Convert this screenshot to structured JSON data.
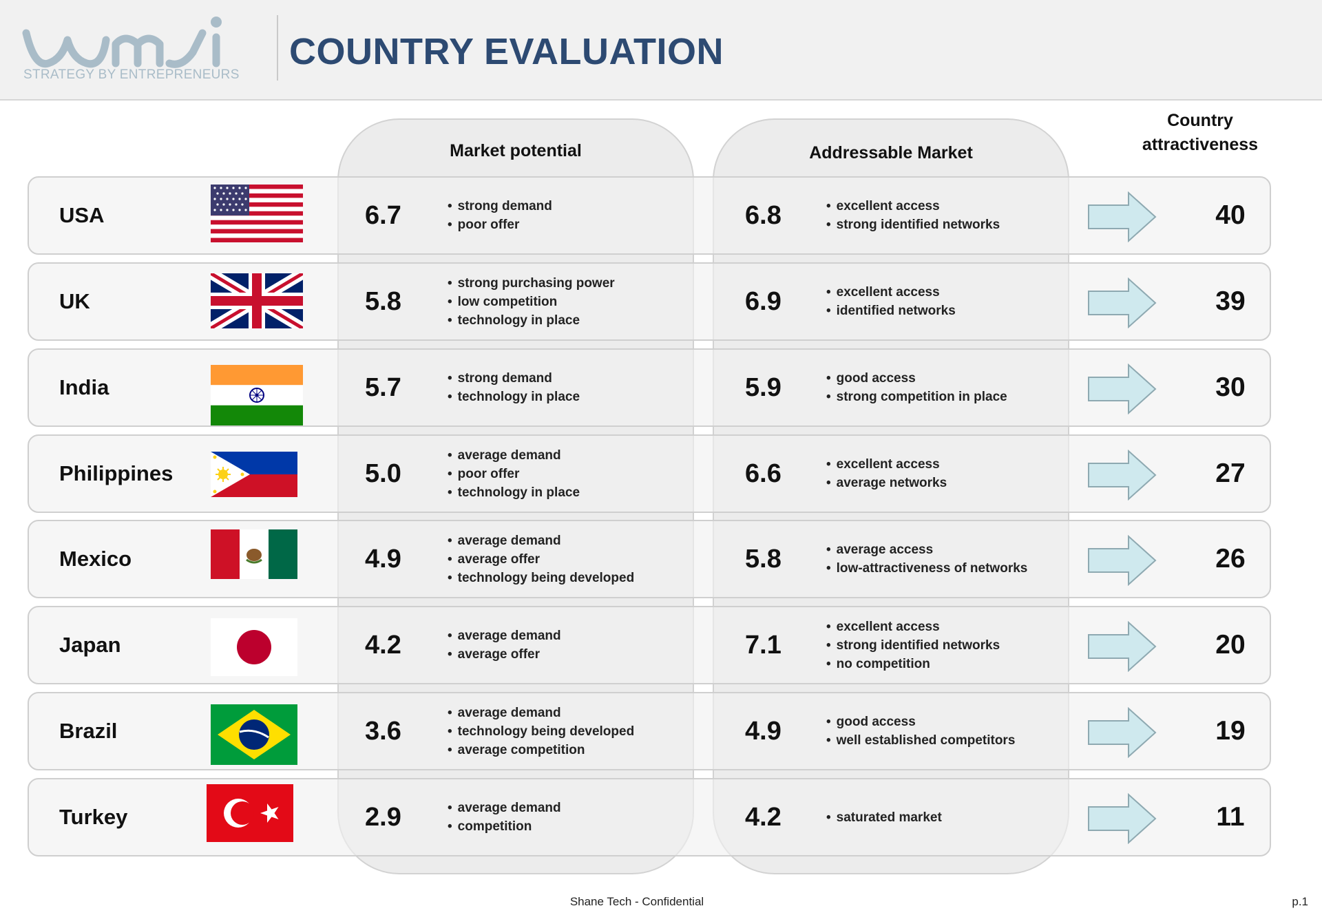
{
  "header": {
    "logo_text": "wmi",
    "logo_tagline": "STRATEGY BY ENTREPRENEURS",
    "title": "COUNTRY EVALUATION"
  },
  "columns": {
    "market_potential": "Market potential",
    "addressable_market": "Addressable Market",
    "attractiveness_line1": "Country",
    "attractiveness_line2": "attractiveness"
  },
  "colors": {
    "title": "#2d4a72",
    "logo": "#a9bcc8",
    "arrow_fill": "#cfe9ee",
    "arrow_stroke": "#8ea9b1"
  },
  "rows": [
    {
      "country": "USA",
      "flag": "usa-flag",
      "market_score": "6.7",
      "market_notes": [
        "strong demand",
        "poor offer"
      ],
      "address_score": "6.8",
      "address_notes": [
        "excellent access",
        "strong identified networks"
      ],
      "attractiveness": "40"
    },
    {
      "country": "UK",
      "flag": "uk-flag",
      "market_score": "5.8",
      "market_notes": [
        "strong purchasing  power",
        "low competition",
        "technology  in place"
      ],
      "address_score": "6.9",
      "address_notes": [
        "excellent access",
        "identified networks"
      ],
      "attractiveness": "39"
    },
    {
      "country": "India",
      "flag": "india-flag",
      "market_score": "5.7",
      "market_notes": [
        "strong demand",
        "technology  in place"
      ],
      "address_score": "5.9",
      "address_notes": [
        "good access",
        "strong competition  in place"
      ],
      "attractiveness": "30"
    },
    {
      "country": "Philippines",
      "flag": "philippines-flag",
      "market_score": "5.0",
      "market_notes": [
        "average demand",
        "poor offer",
        "technology  in place"
      ],
      "address_score": "6.6",
      "address_notes": [
        "excellent access",
        "average networks"
      ],
      "attractiveness": "27"
    },
    {
      "country": "Mexico",
      "flag": "mexico-flag",
      "market_score": "4.9",
      "market_notes": [
        "average demand",
        "average offer",
        "technology being developed"
      ],
      "address_score": "5.8",
      "address_notes": [
        "average access",
        "low-attractiveness  of networks"
      ],
      "attractiveness": "26"
    },
    {
      "country": "Japan",
      "flag": "japan-flag",
      "market_score": "4.2",
      "market_notes": [
        "average demand",
        "average offer"
      ],
      "address_score": "7.1",
      "address_notes": [
        "excellent access",
        "strong identified networks",
        "no competition"
      ],
      "attractiveness": "20"
    },
    {
      "country": "Brazil",
      "flag": "brazil-flag",
      "market_score": "3.6",
      "market_notes": [
        "average demand",
        "technology being developed",
        "average competition"
      ],
      "address_score": "4.9",
      "address_notes": [
        "good access",
        "well established competitors"
      ],
      "attractiveness": "19"
    },
    {
      "country": "Turkey",
      "flag": "turkey-flag",
      "market_score": "2.9",
      "market_notes": [
        "average demand",
        "competition"
      ],
      "address_score": "4.2",
      "address_notes": [
        "saturated market"
      ],
      "attractiveness": "11"
    }
  ],
  "footer": {
    "text": "Shane Tech - Confidential",
    "page": "p.1"
  }
}
